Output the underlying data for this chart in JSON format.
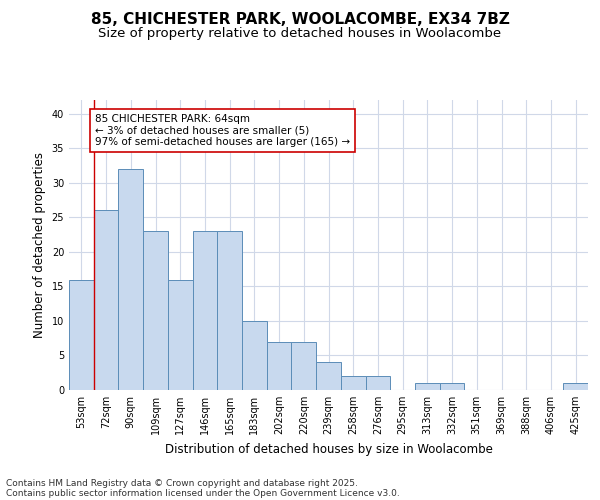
{
  "title1": "85, CHICHESTER PARK, WOOLACOMBE, EX34 7BZ",
  "title2": "Size of property relative to detached houses in Woolacombe",
  "xlabel": "Distribution of detached houses by size in Woolacombe",
  "ylabel": "Number of detached properties",
  "categories": [
    "53sqm",
    "72sqm",
    "90sqm",
    "109sqm",
    "127sqm",
    "146sqm",
    "165sqm",
    "183sqm",
    "202sqm",
    "220sqm",
    "239sqm",
    "258sqm",
    "276sqm",
    "295sqm",
    "313sqm",
    "332sqm",
    "351sqm",
    "369sqm",
    "388sqm",
    "406sqm",
    "425sqm"
  ],
  "values": [
    16,
    26,
    32,
    23,
    16,
    23,
    23,
    10,
    7,
    7,
    4,
    2,
    2,
    0,
    1,
    1,
    0,
    0,
    0,
    0,
    1
  ],
  "bar_color": "#c8d9ee",
  "bar_edge_color": "#5b8db8",
  "annotation_text": "85 CHICHESTER PARK: 64sqm\n← 3% of detached houses are smaller (5)\n97% of semi-detached houses are larger (165) →",
  "annotation_box_color": "#ffffff",
  "annotation_box_edge": "#cc0000",
  "red_line_x": 0.5,
  "ylim": [
    0,
    42
  ],
  "yticks": [
    0,
    5,
    10,
    15,
    20,
    25,
    30,
    35,
    40
  ],
  "footer1": "Contains HM Land Registry data © Crown copyright and database right 2025.",
  "footer2": "Contains public sector information licensed under the Open Government Licence v3.0.",
  "bg_color": "#ffffff",
  "grid_color": "#d0d8e8",
  "title_fontsize": 11,
  "subtitle_fontsize": 9.5,
  "axis_label_fontsize": 8.5,
  "tick_fontsize": 7,
  "annotation_fontsize": 7.5,
  "footer_fontsize": 6.5
}
